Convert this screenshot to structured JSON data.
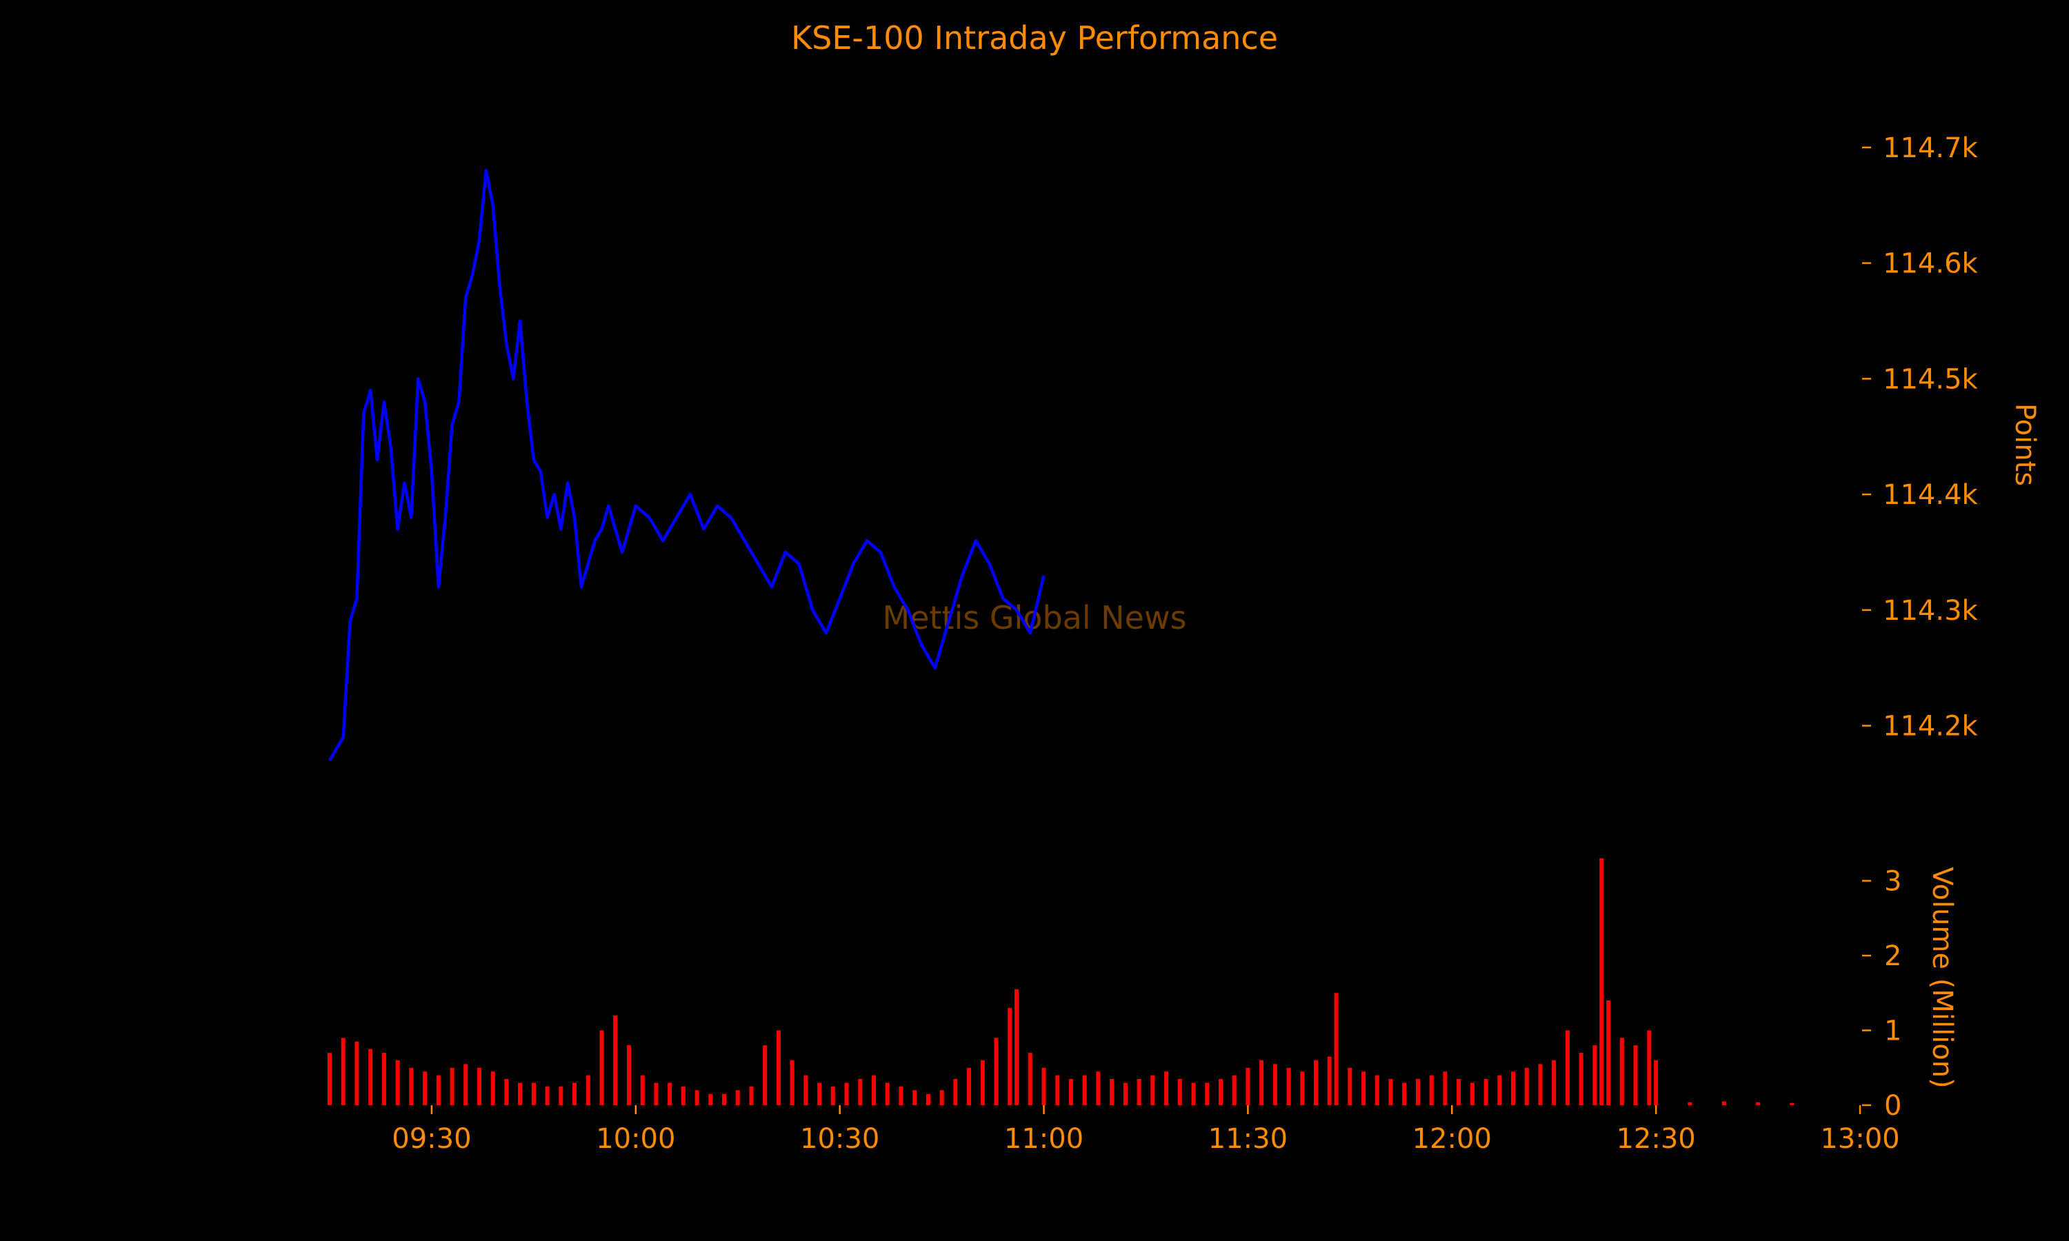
{
  "chart_data": [
    {
      "type": "line",
      "title": "KSE-100 Intraday Performance",
      "ylabel": "Points",
      "ylim": [
        114130,
        114750
      ],
      "xlim": [
        "09:15",
        "13:00"
      ],
      "x_ticks": [
        "09:30",
        "10:00",
        "10:30",
        "11:00",
        "11:30",
        "12:00",
        "12:30",
        "13:00"
      ],
      "y_ticks": [
        {
          "value": 114200,
          "label": "114.2k"
        },
        {
          "value": 114300,
          "label": "114.3k"
        },
        {
          "value": 114400,
          "label": "114.4k"
        },
        {
          "value": 114500,
          "label": "114.5k"
        },
        {
          "value": 114600,
          "label": "114.6k"
        },
        {
          "value": 114700,
          "label": "114.7k"
        }
      ],
      "series": [
        {
          "color": "#0000ff",
          "points": [
            [
              "09:15",
              114170
            ],
            [
              "09:17",
              114190
            ],
            [
              "09:18",
              114290
            ],
            [
              "09:19",
              114310
            ],
            [
              "09:20",
              114470
            ],
            [
              "09:21",
              114490
            ],
            [
              "09:22",
              114430
            ],
            [
              "09:23",
              114480
            ],
            [
              "09:24",
              114440
            ],
            [
              "09:25",
              114370
            ],
            [
              "09:26",
              114410
            ],
            [
              "09:27",
              114380
            ],
            [
              "09:28",
              114500
            ],
            [
              "09:29",
              114480
            ],
            [
              "09:30",
              114420
            ],
            [
              "09:31",
              114320
            ],
            [
              "09:32",
              114380
            ],
            [
              "09:33",
              114460
            ],
            [
              "09:34",
              114480
            ],
            [
              "09:35",
              114570
            ],
            [
              "09:36",
              114590
            ],
            [
              "09:37",
              114620
            ],
            [
              "09:38",
              114680
            ],
            [
              "09:39",
              114650
            ],
            [
              "09:40",
              114580
            ],
            [
              "09:41",
              114530
            ],
            [
              "09:42",
              114500
            ],
            [
              "09:43",
              114550
            ],
            [
              "09:44",
              114480
            ],
            [
              "09:45",
              114430
            ],
            [
              "09:46",
              114420
            ],
            [
              "09:47",
              114380
            ],
            [
              "09:48",
              114400
            ],
            [
              "09:49",
              114370
            ],
            [
              "09:50",
              114410
            ],
            [
              "09:51",
              114380
            ],
            [
              "09:52",
              114320
            ],
            [
              "09:53",
              114340
            ],
            [
              "09:54",
              114360
            ],
            [
              "09:55",
              114370
            ],
            [
              "09:56",
              114390
            ],
            [
              "09:57",
              114370
            ],
            [
              "09:58",
              114350
            ],
            [
              "09:59",
              114370
            ],
            [
              "10:00",
              114390
            ],
            [
              "10:02",
              114380
            ],
            [
              "10:04",
              114360
            ],
            [
              "10:06",
              114380
            ],
            [
              "10:08",
              114400
            ],
            [
              "10:10",
              114370
            ],
            [
              "10:12",
              114390
            ],
            [
              "10:14",
              114380
            ],
            [
              "10:16",
              114360
            ],
            [
              "10:18",
              114340
            ],
            [
              "10:20",
              114320
            ],
            [
              "10:22",
              114350
            ],
            [
              "10:24",
              114340
            ],
            [
              "10:26",
              114300
            ],
            [
              "10:28",
              114280
            ],
            [
              "10:30",
              114310
            ],
            [
              "10:32",
              114340
            ],
            [
              "10:34",
              114360
            ],
            [
              "10:36",
              114350
            ],
            [
              "10:38",
              114320
            ],
            [
              "10:40",
              114300
            ],
            [
              "10:42",
              114270
            ],
            [
              "10:44",
              114250
            ],
            [
              "10:46",
              114290
            ],
            [
              "10:48",
              114330
            ],
            [
              "10:50",
              114360
            ],
            [
              "10:52",
              114340
            ],
            [
              "10:54",
              114310
            ],
            [
              "10:56",
              114300
            ],
            [
              "10:58",
              114280
            ],
            [
              "11:00",
              114330
            ]
          ]
        }
      ]
    },
    {
      "type": "bar",
      "ylabel": "Volume (Million)",
      "ylim": [
        0,
        3.3
      ],
      "y_ticks": [
        {
          "value": 0,
          "label": "0"
        },
        {
          "value": 1,
          "label": "1"
        },
        {
          "value": 2,
          "label": "2"
        },
        {
          "value": 3,
          "label": "3"
        }
      ],
      "series": [
        {
          "color": "#ff0000",
          "points": [
            [
              "09:15",
              0.7
            ],
            [
              "09:17",
              0.9
            ],
            [
              "09:19",
              0.85
            ],
            [
              "09:21",
              0.75
            ],
            [
              "09:23",
              0.7
            ],
            [
              "09:25",
              0.6
            ],
            [
              "09:27",
              0.5
            ],
            [
              "09:29",
              0.45
            ],
            [
              "09:31",
              0.4
            ],
            [
              "09:33",
              0.5
            ],
            [
              "09:35",
              0.55
            ],
            [
              "09:37",
              0.5
            ],
            [
              "09:39",
              0.45
            ],
            [
              "09:41",
              0.35
            ],
            [
              "09:43",
              0.3
            ],
            [
              "09:45",
              0.3
            ],
            [
              "09:47",
              0.25
            ],
            [
              "09:49",
              0.25
            ],
            [
              "09:51",
              0.3
            ],
            [
              "09:53",
              0.4
            ],
            [
              "09:55",
              1.0
            ],
            [
              "09:57",
              1.2
            ],
            [
              "09:59",
              0.8
            ],
            [
              "10:01",
              0.4
            ],
            [
              "10:03",
              0.3
            ],
            [
              "10:05",
              0.3
            ],
            [
              "10:07",
              0.25
            ],
            [
              "10:09",
              0.2
            ],
            [
              "10:11",
              0.15
            ],
            [
              "10:13",
              0.15
            ],
            [
              "10:15",
              0.2
            ],
            [
              "10:17",
              0.25
            ],
            [
              "10:19",
              0.8
            ],
            [
              "10:21",
              1.0
            ],
            [
              "10:23",
              0.6
            ],
            [
              "10:25",
              0.4
            ],
            [
              "10:27",
              0.3
            ],
            [
              "10:29",
              0.25
            ],
            [
              "10:31",
              0.3
            ],
            [
              "10:33",
              0.35
            ],
            [
              "10:35",
              0.4
            ],
            [
              "10:37",
              0.3
            ],
            [
              "10:39",
              0.25
            ],
            [
              "10:41",
              0.2
            ],
            [
              "10:43",
              0.15
            ],
            [
              "10:45",
              0.2
            ],
            [
              "10:47",
              0.35
            ],
            [
              "10:49",
              0.5
            ],
            [
              "10:51",
              0.6
            ],
            [
              "10:53",
              0.9
            ],
            [
              "10:55",
              1.3
            ],
            [
              "10:56",
              1.55
            ],
            [
              "10:58",
              0.7
            ],
            [
              "11:00",
              0.5
            ],
            [
              "11:02",
              0.4
            ],
            [
              "11:04",
              0.35
            ],
            [
              "11:06",
              0.4
            ],
            [
              "11:08",
              0.45
            ],
            [
              "11:10",
              0.35
            ],
            [
              "11:12",
              0.3
            ],
            [
              "11:14",
              0.35
            ],
            [
              "11:16",
              0.4
            ],
            [
              "11:18",
              0.45
            ],
            [
              "11:20",
              0.35
            ],
            [
              "11:22",
              0.3
            ],
            [
              "11:24",
              0.3
            ],
            [
              "11:26",
              0.35
            ],
            [
              "11:28",
              0.4
            ],
            [
              "11:30",
              0.5
            ],
            [
              "11:32",
              0.6
            ],
            [
              "11:34",
              0.55
            ],
            [
              "11:36",
              0.5
            ],
            [
              "11:38",
              0.45
            ],
            [
              "11:40",
              0.6
            ],
            [
              "11:42",
              0.65
            ],
            [
              "11:43",
              1.5
            ],
            [
              "11:45",
              0.5
            ],
            [
              "11:47",
              0.45
            ],
            [
              "11:49",
              0.4
            ],
            [
              "11:51",
              0.35
            ],
            [
              "11:53",
              0.3
            ],
            [
              "11:55",
              0.35
            ],
            [
              "11:57",
              0.4
            ],
            [
              "11:59",
              0.45
            ],
            [
              "12:01",
              0.35
            ],
            [
              "12:03",
              0.3
            ],
            [
              "12:05",
              0.35
            ],
            [
              "12:07",
              0.4
            ],
            [
              "12:09",
              0.45
            ],
            [
              "12:11",
              0.5
            ],
            [
              "12:13",
              0.55
            ],
            [
              "12:15",
              0.6
            ],
            [
              "12:17",
              1.0
            ],
            [
              "12:19",
              0.7
            ],
            [
              "12:21",
              0.8
            ],
            [
              "12:22",
              3.3
            ],
            [
              "12:23",
              1.4
            ],
            [
              "12:25",
              0.9
            ],
            [
              "12:27",
              0.8
            ],
            [
              "12:29",
              1.0
            ],
            [
              "12:30",
              0.6
            ],
            [
              "12:35",
              0.04
            ],
            [
              "12:40",
              0.05
            ],
            [
              "12:45",
              0.04
            ],
            [
              "12:50",
              0.03
            ]
          ]
        }
      ]
    }
  ],
  "watermark": "Mettis Global News"
}
